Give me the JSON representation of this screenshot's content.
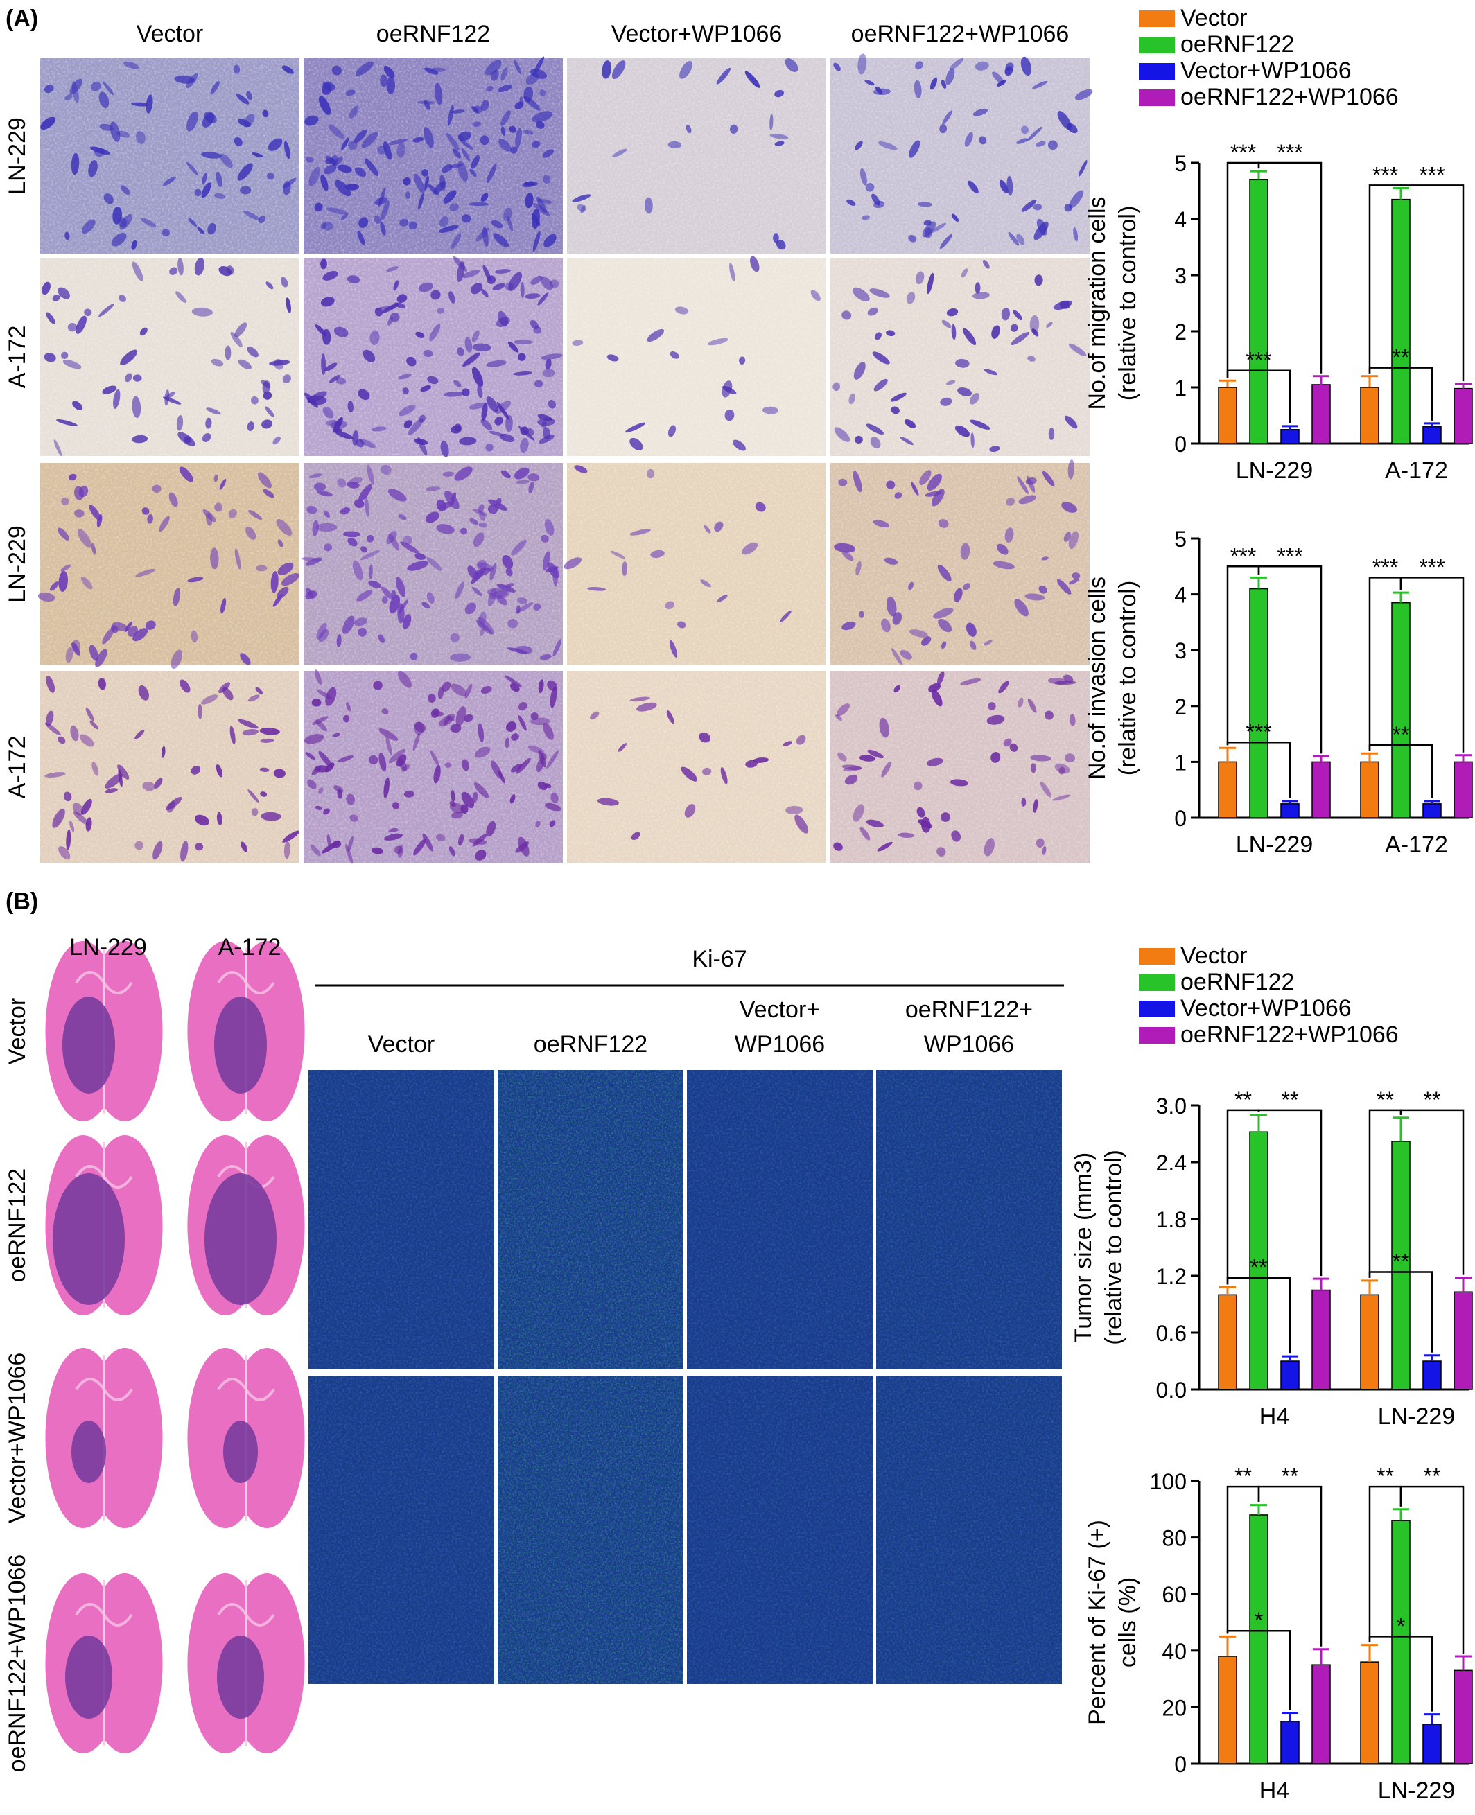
{
  "panel_a": {
    "letter": "(A)",
    "column_headers": [
      "Vector",
      "oeRNF122",
      "Vector+WP1066",
      "oeRNF122+WP1066"
    ],
    "row_labels": [
      "LN-229",
      "A-172",
      "LN-229",
      "A-172"
    ],
    "image_tones": [
      [
        "#9d9cc8",
        "#8f85c1",
        "#d6cfd7",
        "#c9c3d6"
      ],
      [
        "#e6e0d8",
        "#b8a4cf",
        "#ece6dc",
        "#e6dcd6"
      ],
      [
        "#d7bfa0",
        "#b6a3c4",
        "#e6d4bc",
        "#d9c3ad"
      ],
      [
        "#e2cfbd",
        "#b6a0c9",
        "#e8d7c4",
        "#d9c4c6"
      ]
    ],
    "blob_colors": [
      "#3b31b8",
      "#4d2fb0",
      "#6b3bb8",
      "#6a2aa3"
    ]
  },
  "panel_b": {
    "letter": "(B)",
    "he_column_headers": [
      "LN-229",
      "A-172"
    ],
    "he_row_labels": [
      "Vector",
      "oeRNF122",
      "Vector+WP1066",
      "oeRNF122+WP1066"
    ],
    "ki67_title": "Ki-67",
    "ki67_column_headers": [
      [
        "Vector"
      ],
      [
        "oeRNF122"
      ],
      [
        "Vector+",
        "WP1066"
      ],
      [
        "oeRNF122+",
        "WP1066"
      ]
    ],
    "ki67_green_level": [
      0.15,
      0.45,
      0.12,
      0.18
    ],
    "he_tissue_color": "#e86fc2",
    "he_tumor_color": "#7a3c9e",
    "if_base_color": "#1a3a8a",
    "if_green_color": "#2fbf5f"
  },
  "legend": {
    "items": [
      {
        "label": "Vector",
        "color": "#f27c12"
      },
      {
        "label": "oeRNF122",
        "color": "#28c328"
      },
      {
        "label": "Vector+WP1066",
        "color": "#1414e6"
      },
      {
        "label": "oeRNF122+WP1066",
        "color": "#b01cb8"
      }
    ]
  },
  "chart_data": [
    {
      "type": "bar",
      "ylabel": [
        "No.of migration cells",
        "(relative to control)"
      ],
      "categories": [
        "LN-229",
        "A-172"
      ],
      "ylim": [
        0,
        5
      ],
      "yticks": [
        "0",
        "1",
        "2",
        "3",
        "4",
        "5"
      ],
      "series": [
        {
          "name": "Vector",
          "values": [
            1.0,
            1.0
          ],
          "errors": [
            0.12,
            0.2
          ]
        },
        {
          "name": "oeRNF122",
          "values": [
            4.7,
            4.35
          ],
          "errors": [
            0.15,
            0.2
          ]
        },
        {
          "name": "Vector+WP1066",
          "values": [
            0.25,
            0.3
          ],
          "errors": [
            0.06,
            0.06
          ]
        },
        {
          "name": "oeRNF122+WP1066",
          "values": [
            1.05,
            0.98
          ],
          "errors": [
            0.15,
            0.08
          ]
        }
      ],
      "significance": [
        {
          "group": 0,
          "from": 0,
          "to": 1,
          "y": 5.0,
          "text": "***"
        },
        {
          "group": 0,
          "from": 1,
          "to": 3,
          "y": 5.0,
          "text": "***"
        },
        {
          "group": 0,
          "from": 0,
          "to": 2,
          "y": 1.3,
          "text": "***"
        },
        {
          "group": 1,
          "from": 0,
          "to": 1,
          "y": 4.6,
          "text": "***"
        },
        {
          "group": 1,
          "from": 1,
          "to": 3,
          "y": 4.6,
          "text": "***"
        },
        {
          "group": 1,
          "from": 0,
          "to": 2,
          "y": 1.35,
          "text": "**"
        }
      ]
    },
    {
      "type": "bar",
      "ylabel": [
        "No.of invasion cells",
        "(relative to control)"
      ],
      "categories": [
        "LN-229",
        "A-172"
      ],
      "ylim": [
        0,
        5
      ],
      "yticks": [
        "0",
        "1",
        "2",
        "3",
        "4",
        "5"
      ],
      "series": [
        {
          "name": "Vector",
          "values": [
            1.0,
            1.0
          ],
          "errors": [
            0.25,
            0.15
          ]
        },
        {
          "name": "oeRNF122",
          "values": [
            4.1,
            3.85
          ],
          "errors": [
            0.2,
            0.18
          ]
        },
        {
          "name": "Vector+WP1066",
          "values": [
            0.25,
            0.25
          ],
          "errors": [
            0.05,
            0.05
          ]
        },
        {
          "name": "oeRNF122+WP1066",
          "values": [
            1.0,
            1.0
          ],
          "errors": [
            0.1,
            0.12
          ]
        }
      ],
      "significance": [
        {
          "group": 0,
          "from": 0,
          "to": 1,
          "y": 4.5,
          "text": "***"
        },
        {
          "group": 0,
          "from": 1,
          "to": 3,
          "y": 4.5,
          "text": "***"
        },
        {
          "group": 0,
          "from": 0,
          "to": 2,
          "y": 1.35,
          "text": "***"
        },
        {
          "group": 1,
          "from": 0,
          "to": 1,
          "y": 4.3,
          "text": "***"
        },
        {
          "group": 1,
          "from": 1,
          "to": 3,
          "y": 4.3,
          "text": "***"
        },
        {
          "group": 1,
          "from": 0,
          "to": 2,
          "y": 1.3,
          "text": "**"
        }
      ]
    },
    {
      "type": "bar",
      "ylabel": [
        "Tumor size (mm3)",
        "(relative to control)"
      ],
      "categories": [
        "H4",
        "LN-229"
      ],
      "ylim": [
        0,
        3.0
      ],
      "yticks": [
        "0.0",
        "0.6",
        "1.2",
        "1.8",
        "2.4",
        "3.0"
      ],
      "series": [
        {
          "name": "Vector",
          "values": [
            1.0,
            1.0
          ],
          "errors": [
            0.08,
            0.15
          ]
        },
        {
          "name": "oeRNF122",
          "values": [
            2.72,
            2.62
          ],
          "errors": [
            0.18,
            0.25
          ]
        },
        {
          "name": "Vector+WP1066",
          "values": [
            0.3,
            0.3
          ],
          "errors": [
            0.05,
            0.06
          ]
        },
        {
          "name": "oeRNF122+WP1066",
          "values": [
            1.05,
            1.03
          ],
          "errors": [
            0.12,
            0.15
          ]
        }
      ],
      "significance": [
        {
          "group": 0,
          "from": 0,
          "to": 1,
          "y": 2.95,
          "text": "**"
        },
        {
          "group": 0,
          "from": 1,
          "to": 3,
          "y": 2.95,
          "text": "**"
        },
        {
          "group": 0,
          "from": 0,
          "to": 2,
          "y": 1.18,
          "text": "**"
        },
        {
          "group": 1,
          "from": 0,
          "to": 1,
          "y": 2.95,
          "text": "**"
        },
        {
          "group": 1,
          "from": 1,
          "to": 3,
          "y": 2.95,
          "text": "**"
        },
        {
          "group": 1,
          "from": 0,
          "to": 2,
          "y": 1.24,
          "text": "**"
        }
      ]
    },
    {
      "type": "bar",
      "ylabel": [
        "Percent of Ki-67 (+)",
        "cells (%)"
      ],
      "categories": [
        "H4",
        "LN-229"
      ],
      "ylim": [
        0,
        100
      ],
      "yticks": [
        "0",
        "20",
        "40",
        "60",
        "80",
        "100"
      ],
      "series": [
        {
          "name": "Vector",
          "values": [
            38,
            36
          ],
          "errors": [
            7,
            6
          ]
        },
        {
          "name": "oeRNF122",
          "values": [
            88,
            86
          ],
          "errors": [
            3.5,
            4
          ]
        },
        {
          "name": "Vector+WP1066",
          "values": [
            15,
            14
          ],
          "errors": [
            3,
            3.5
          ]
        },
        {
          "name": "oeRNF122+WP1066",
          "values": [
            35,
            33
          ],
          "errors": [
            5.5,
            5
          ]
        }
      ],
      "significance": [
        {
          "group": 0,
          "from": 0,
          "to": 1,
          "y": 98,
          "text": "**"
        },
        {
          "group": 0,
          "from": 1,
          "to": 3,
          "y": 98,
          "text": "**"
        },
        {
          "group": 0,
          "from": 0,
          "to": 2,
          "y": 47,
          "text": "*"
        },
        {
          "group": 1,
          "from": 0,
          "to": 1,
          "y": 98,
          "text": "**"
        },
        {
          "group": 1,
          "from": 1,
          "to": 3,
          "y": 98,
          "text": "**"
        },
        {
          "group": 1,
          "from": 0,
          "to": 2,
          "y": 45,
          "text": "*"
        }
      ]
    }
  ]
}
